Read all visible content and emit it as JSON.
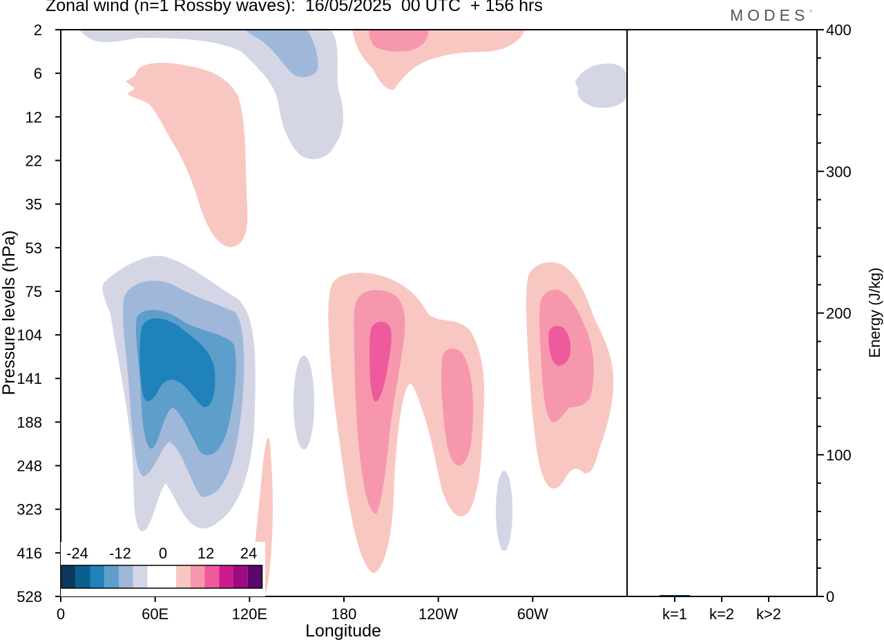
{
  "header": {
    "title": "Zonal wind (n=1 Rossby waves):  16/05/2025  00 UTC  + 156 hrs",
    "brand": "MODES"
  },
  "colors": {
    "neg": [
      "#0a3a5c",
      "#0a5f8e",
      "#1f82bb",
      "#5d9ecb",
      "#9fb8d9",
      "#d4d5e5"
    ],
    "zero": "#ffffff",
    "pos": [
      "#f9c7c2",
      "#f797ad",
      "#ee5a9c",
      "#cd1b8a",
      "#9c0c7e",
      "#5b066a"
    ]
  },
  "chart_data": [
    {
      "type": "contour",
      "title": "Zonal wind (n=1 Rossby waves):  16/05/2025  00 UTC  + 156 hrs",
      "xlabel": "Longitude",
      "ylabel": "Pressure levels (hPa)",
      "x_ticks": [
        "0",
        "60E",
        "120E",
        "180",
        "120W",
        "60W"
      ],
      "x_tick_degrees": [
        0,
        60,
        120,
        180,
        240,
        300
      ],
      "xlim": [
        0,
        360
      ],
      "y_ticks": [
        "2",
        "6",
        "12",
        "22",
        "35",
        "53",
        "75",
        "104",
        "141",
        "188",
        "248",
        "323",
        "416",
        "528"
      ],
      "colorbar_labels": [
        "-24",
        "-12",
        "0",
        "12",
        "24"
      ],
      "colorbar_levels": [
        -30,
        -25,
        -20,
        -15,
        -10,
        -5,
        5,
        10,
        15,
        20,
        25,
        30
      ],
      "features": [
        {
          "sign": "negative",
          "peak": -20,
          "lon": 68,
          "pressure": 141
        },
        {
          "sign": "negative",
          "peak": -10,
          "lon": 145,
          "pressure": 6
        },
        {
          "sign": "positive",
          "peak": 15,
          "lon": 195,
          "pressure": 141
        },
        {
          "sign": "positive",
          "peak": 10,
          "lon": 250,
          "pressure": 188
        },
        {
          "sign": "positive",
          "peak": 15,
          "lon": 318,
          "pressure": 104
        },
        {
          "sign": "positive",
          "peak": 10,
          "lon": 205,
          "pressure": 2
        }
      ]
    },
    {
      "type": "bar",
      "ylabel": "Energy (J/kg)",
      "categories": [
        "k=1",
        "k=2",
        "k>2"
      ],
      "values": [
        1,
        0,
        0.5
      ],
      "ylim": [
        0,
        400
      ],
      "y_ticks": [
        "0",
        "100",
        "200",
        "300",
        "400"
      ]
    }
  ]
}
